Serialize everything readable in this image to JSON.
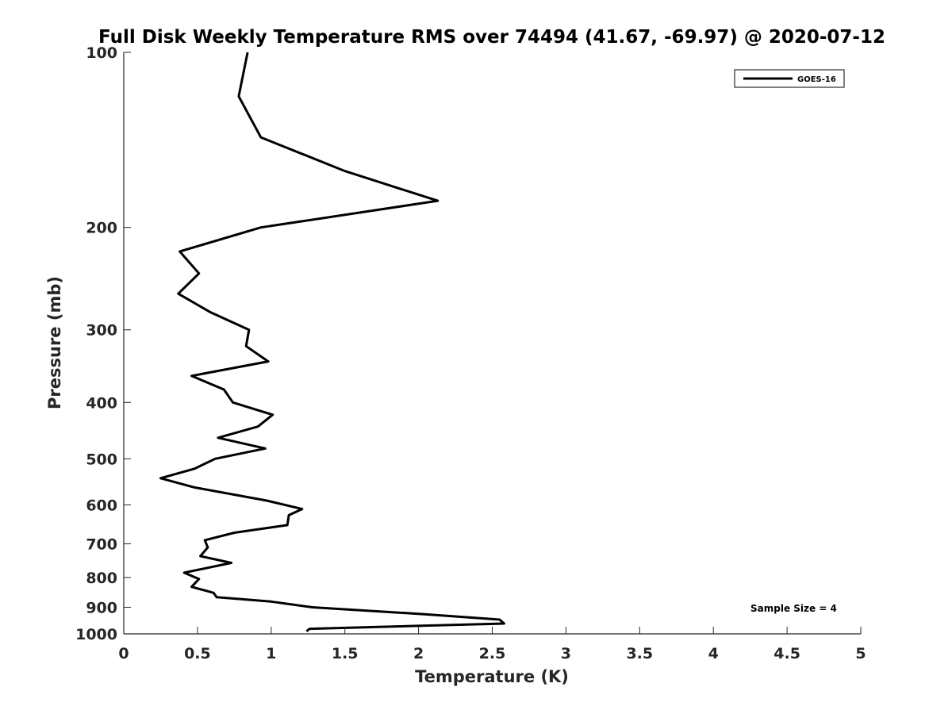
{
  "chart_data": {
    "type": "line",
    "title": "Full Disk Weekly Temperature RMS over 74494 (41.67, -69.97) @ 2020-07-12",
    "xlabel": "Temperature (K)",
    "ylabel": "Pressure (mb)",
    "xlim": [
      0,
      5
    ],
    "ylim": [
      100,
      1000
    ],
    "yscale": "log",
    "y_reversed": true,
    "grid": false,
    "legend_position": "top-right",
    "x_ticks": [
      "0",
      "0.5",
      "1",
      "1.5",
      "2",
      "2.5",
      "3",
      "3.5",
      "4",
      "4.5",
      "5"
    ],
    "y_ticks": [
      "100",
      "200",
      "300",
      "400",
      "500",
      "600",
      "700",
      "800",
      "900",
      "1000"
    ],
    "series": [
      {
        "name": "GOES-16",
        "color": "#000000",
        "points": [
          [
            0.84,
            100
          ],
          [
            0.78,
            119
          ],
          [
            0.93,
            140
          ],
          [
            1.5,
            160
          ],
          [
            2.13,
            180
          ],
          [
            0.93,
            200
          ],
          [
            0.38,
            220
          ],
          [
            0.51,
            240
          ],
          [
            0.37,
            260
          ],
          [
            0.59,
            280
          ],
          [
            0.85,
            300
          ],
          [
            0.83,
            320
          ],
          [
            0.98,
            340
          ],
          [
            0.46,
            360
          ],
          [
            0.68,
            380
          ],
          [
            0.74,
            400
          ],
          [
            1.01,
            420
          ],
          [
            0.91,
            440
          ],
          [
            0.64,
            460
          ],
          [
            0.96,
            480
          ],
          [
            0.62,
            500
          ],
          [
            0.48,
            520
          ],
          [
            0.25,
            540
          ],
          [
            0.48,
            560
          ],
          [
            0.97,
            590
          ],
          [
            1.21,
            610
          ],
          [
            1.12,
            625
          ],
          [
            1.11,
            650
          ],
          [
            0.75,
            670
          ],
          [
            0.55,
            690
          ],
          [
            0.57,
            710
          ],
          [
            0.52,
            735
          ],
          [
            0.73,
            755
          ],
          [
            0.41,
            785
          ],
          [
            0.51,
            805
          ],
          [
            0.46,
            830
          ],
          [
            0.61,
            850
          ],
          [
            0.63,
            865
          ],
          [
            1.0,
            880
          ],
          [
            1.28,
            900
          ],
          [
            2.04,
            925
          ],
          [
            2.55,
            945
          ],
          [
            2.58,
            960
          ],
          [
            1.26,
            980
          ],
          [
            1.24,
            990
          ]
        ]
      }
    ],
    "annotation": "Sample Size = 4"
  }
}
